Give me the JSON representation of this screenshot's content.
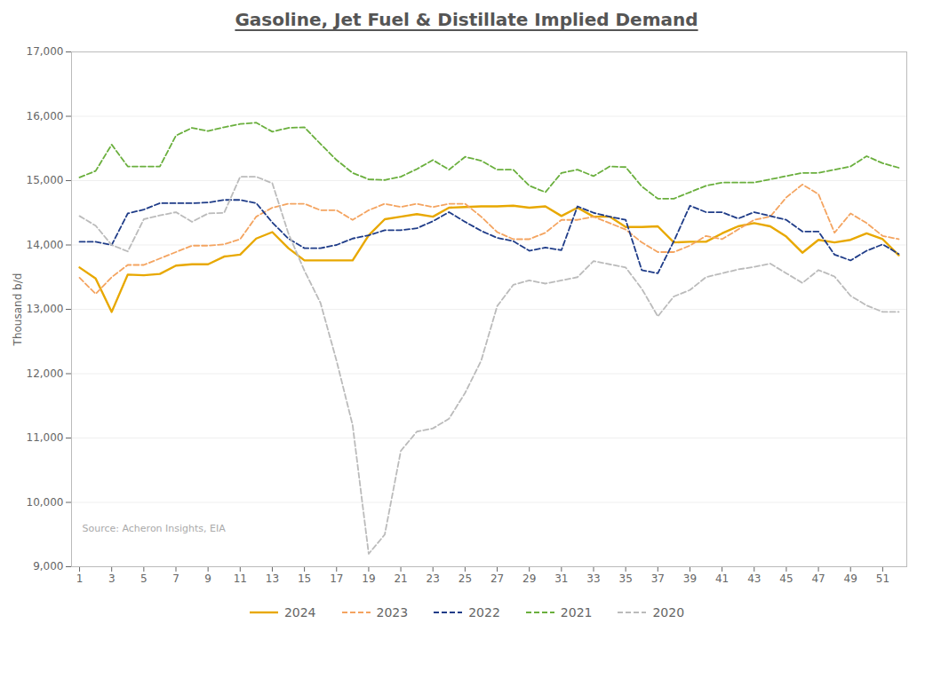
{
  "chart_data": {
    "type": "line",
    "title": "Gasoline, Jet Fuel & Distillate Implied Demand",
    "ylabel": "Thousand b/d",
    "annotations": [
      "Source: Acheron Insights, EIA"
    ],
    "x": [
      1,
      2,
      3,
      4,
      5,
      6,
      7,
      8,
      9,
      10,
      11,
      12,
      13,
      14,
      15,
      16,
      17,
      18,
      19,
      20,
      21,
      22,
      23,
      24,
      25,
      26,
      27,
      28,
      29,
      30,
      31,
      32,
      33,
      34,
      35,
      36,
      37,
      38,
      39,
      40,
      41,
      42,
      43,
      44,
      45,
      46,
      47,
      48,
      49,
      50,
      51,
      52
    ],
    "xlim": [
      0.5,
      52.5
    ],
    "xticks": [
      1,
      3,
      5,
      7,
      9,
      11,
      13,
      15,
      17,
      19,
      21,
      23,
      25,
      27,
      29,
      31,
      33,
      35,
      37,
      39,
      41,
      43,
      45,
      47,
      49,
      51
    ],
    "ylim": [
      9000,
      17000
    ],
    "yticks": [
      {
        "value": 9000,
        "label": "9,000"
      },
      {
        "value": 10000,
        "label": "10,000"
      },
      {
        "value": 11000,
        "label": "11,000"
      },
      {
        "value": 12000,
        "label": "12,000"
      },
      {
        "value": 13000,
        "label": "13,000"
      },
      {
        "value": 14000,
        "label": "14,000"
      },
      {
        "value": 15000,
        "label": "15,000"
      },
      {
        "value": 16000,
        "label": "16,000"
      },
      {
        "value": 17000,
        "label": "17,000"
      }
    ],
    "grid": true,
    "legend": "bottom",
    "series": [
      {
        "name": "2024",
        "color": "#E8A800",
        "line_style": "solid",
        "values": [
          13650,
          13480,
          12960,
          13540,
          13530,
          13550,
          13680,
          13700,
          13700,
          13820,
          13850,
          14100,
          14200,
          13950,
          13760,
          13760,
          13760,
          13760,
          14150,
          14400,
          14440,
          14480,
          14440,
          14580,
          14590,
          14600,
          14600,
          14610,
          14580,
          14600,
          14450,
          14580,
          14440,
          14440,
          14280,
          14280,
          14290,
          14040,
          14050,
          14050,
          14180,
          14290,
          14340,
          14290,
          14130,
          13880,
          14080,
          14040,
          14080,
          14180,
          14090,
          13840
        ]
      },
      {
        "name": "2023",
        "color": "#F4A460",
        "line_style": "dashed",
        "values": [
          13490,
          13240,
          13500,
          13690,
          13690,
          13790,
          13890,
          13990,
          13990,
          14010,
          14090,
          14440,
          14580,
          14640,
          14640,
          14540,
          14540,
          14390,
          14540,
          14640,
          14590,
          14640,
          14590,
          14640,
          14640,
          14440,
          14200,
          14090,
          14090,
          14190,
          14390,
          14390,
          14440,
          14340,
          14240,
          14040,
          13890,
          13890,
          13990,
          14140,
          14090,
          14240,
          14390,
          14440,
          14740,
          14940,
          14790,
          14190,
          14490,
          14340,
          14140,
          14090
        ]
      },
      {
        "name": "2022",
        "color": "#1F3C88",
        "line_style": "dashed",
        "values": [
          14050,
          14050,
          14000,
          14490,
          14550,
          14650,
          14650,
          14650,
          14660,
          14700,
          14700,
          14650,
          14350,
          14100,
          13950,
          13950,
          14000,
          14100,
          14150,
          14230,
          14230,
          14260,
          14370,
          14510,
          14360,
          14220,
          14110,
          14060,
          13910,
          13960,
          13920,
          14600,
          14500,
          14440,
          14390,
          13610,
          13560,
          14060,
          14610,
          14510,
          14510,
          14410,
          14510,
          14450,
          14390,
          14210,
          14210,
          13850,
          13760,
          13910,
          14010,
          13860
        ]
      },
      {
        "name": "2021",
        "color": "#6AAF3D",
        "line_style": "dashed",
        "values": [
          15050,
          15150,
          15560,
          15220,
          15220,
          15220,
          15700,
          15820,
          15770,
          15830,
          15880,
          15900,
          15760,
          15820,
          15830,
          15570,
          15320,
          15120,
          15020,
          15010,
          15060,
          15180,
          15320,
          15170,
          15370,
          15310,
          15170,
          15170,
          14920,
          14820,
          15120,
          15170,
          15070,
          15220,
          15210,
          14910,
          14720,
          14720,
          14820,
          14920,
          14970,
          14970,
          14970,
          15020,
          15070,
          15120,
          15120,
          15170,
          15220,
          15380,
          15270,
          15200
        ]
      },
      {
        "name": "2020",
        "color": "#BBBBBB",
        "line_style": "dashed",
        "values": [
          14450,
          14300,
          14000,
          13900,
          14400,
          14460,
          14510,
          14360,
          14490,
          14500,
          15060,
          15060,
          14960,
          14180,
          13600,
          13100,
          12200,
          11200,
          9200,
          9500,
          10800,
          11100,
          11150,
          11300,
          11700,
          12200,
          13050,
          13380,
          13450,
          13400,
          13450,
          13500,
          13750,
          13700,
          13650,
          13320,
          12890,
          13200,
          13300,
          13500,
          13560,
          13620,
          13660,
          13710,
          13560,
          13410,
          13610,
          13510,
          13210,
          13060,
          12960,
          12960
        ]
      }
    ]
  }
}
